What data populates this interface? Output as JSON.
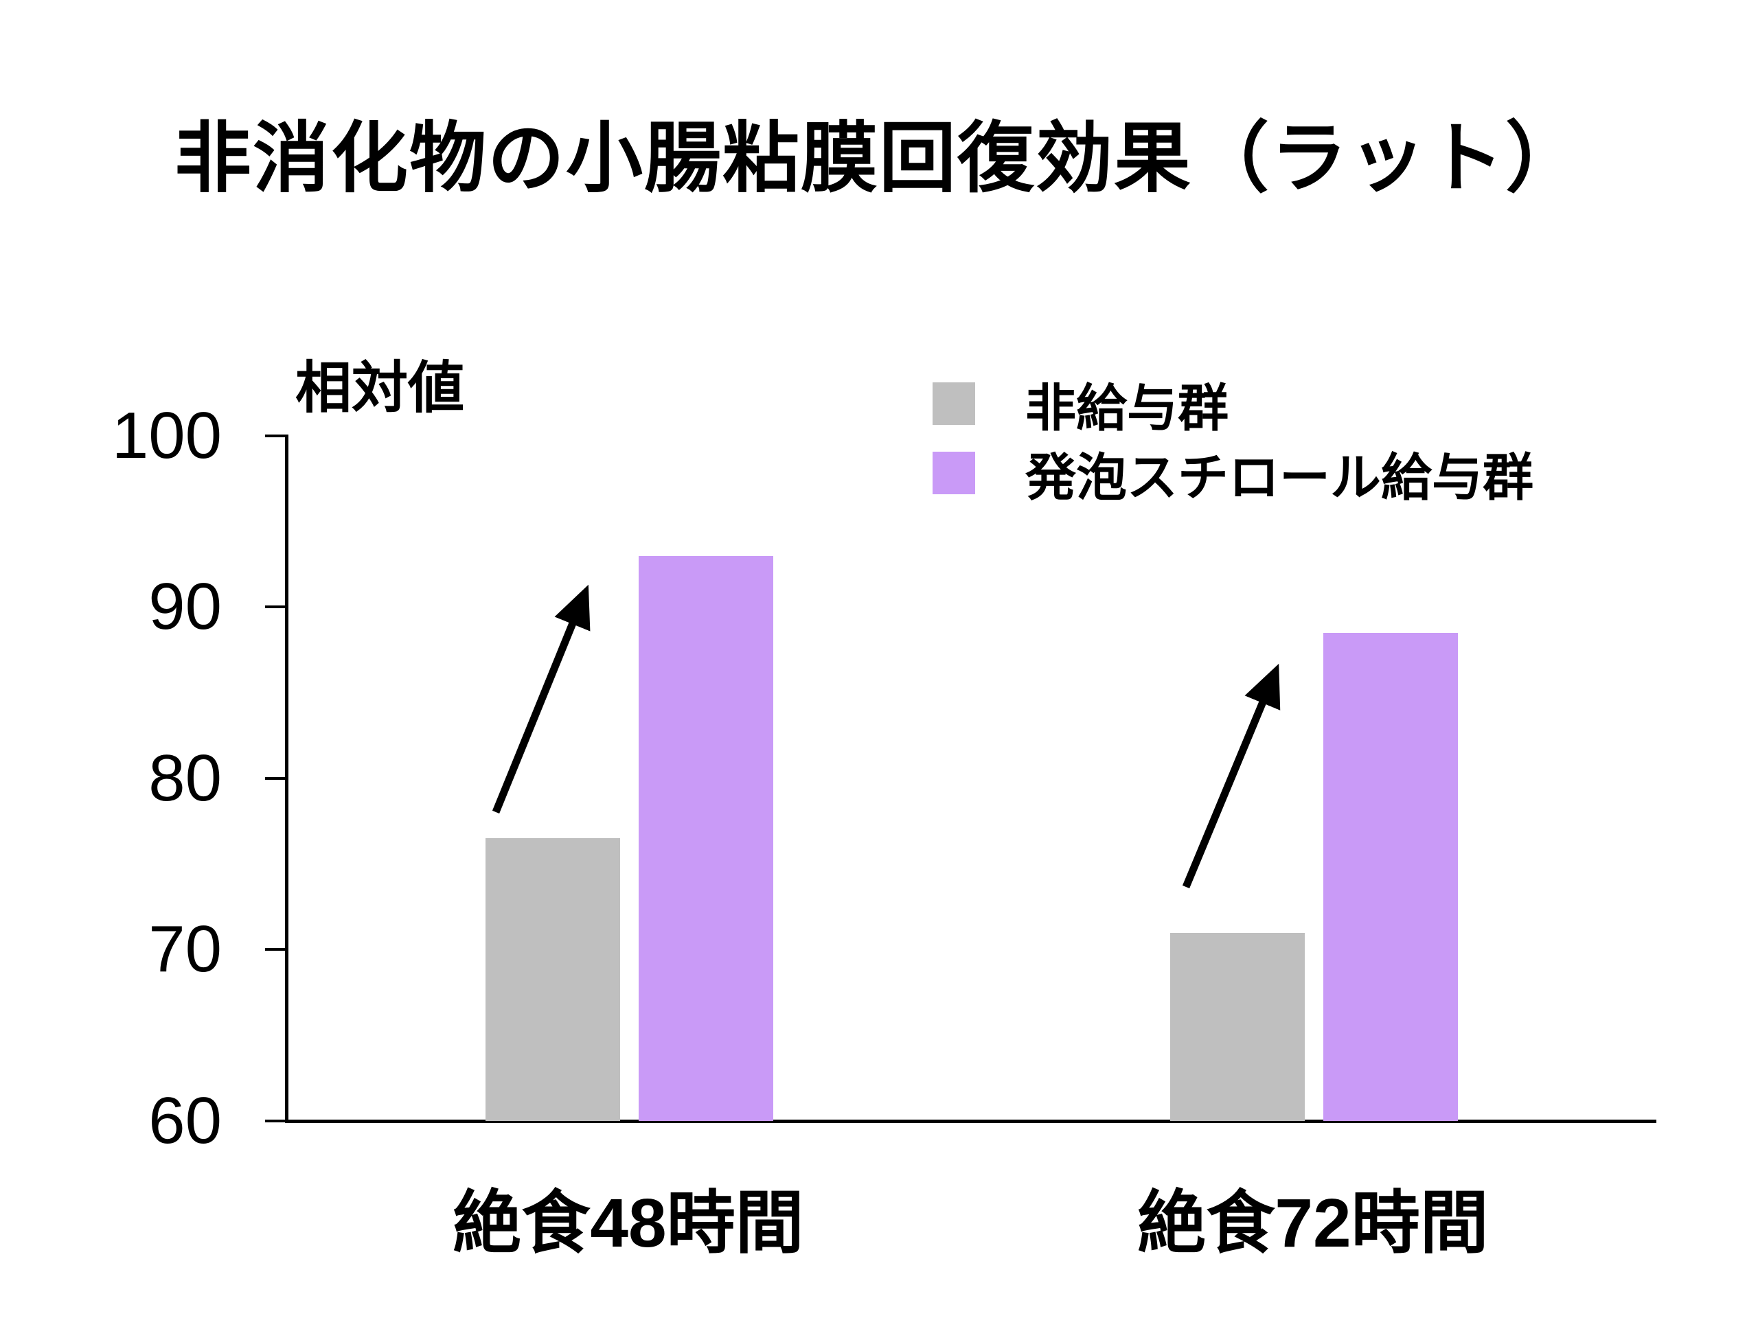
{
  "title": "非消化物の小腸粘膜回復効果（ラット）",
  "chart_data": {
    "type": "bar",
    "title": "非消化物の小腸粘膜回復効果（ラット）",
    "y_axis_label": "相対値",
    "xlabel": "",
    "ylabel": "相対値",
    "categories": [
      "絶食48時間",
      "絶食72時間"
    ],
    "series": [
      {
        "name": "非給与群",
        "color": "#bfbfbf",
        "values": [
          76.5,
          71
        ]
      },
      {
        "name": "発泡スチロール給与群",
        "color": "#c99af7",
        "values": [
          93,
          88.5
        ]
      }
    ],
    "ylim": [
      60,
      100
    ],
    "y_ticks": [
      100,
      90,
      80,
      70,
      60
    ],
    "grid": false,
    "legend_position": "inside-upper-right",
    "annotations": [
      {
        "type": "increase-arrow",
        "group": "絶食48時間"
      },
      {
        "type": "increase-arrow",
        "group": "絶食72時間"
      }
    ],
    "axis_color": "#000000",
    "background_color": "#ffffff"
  }
}
